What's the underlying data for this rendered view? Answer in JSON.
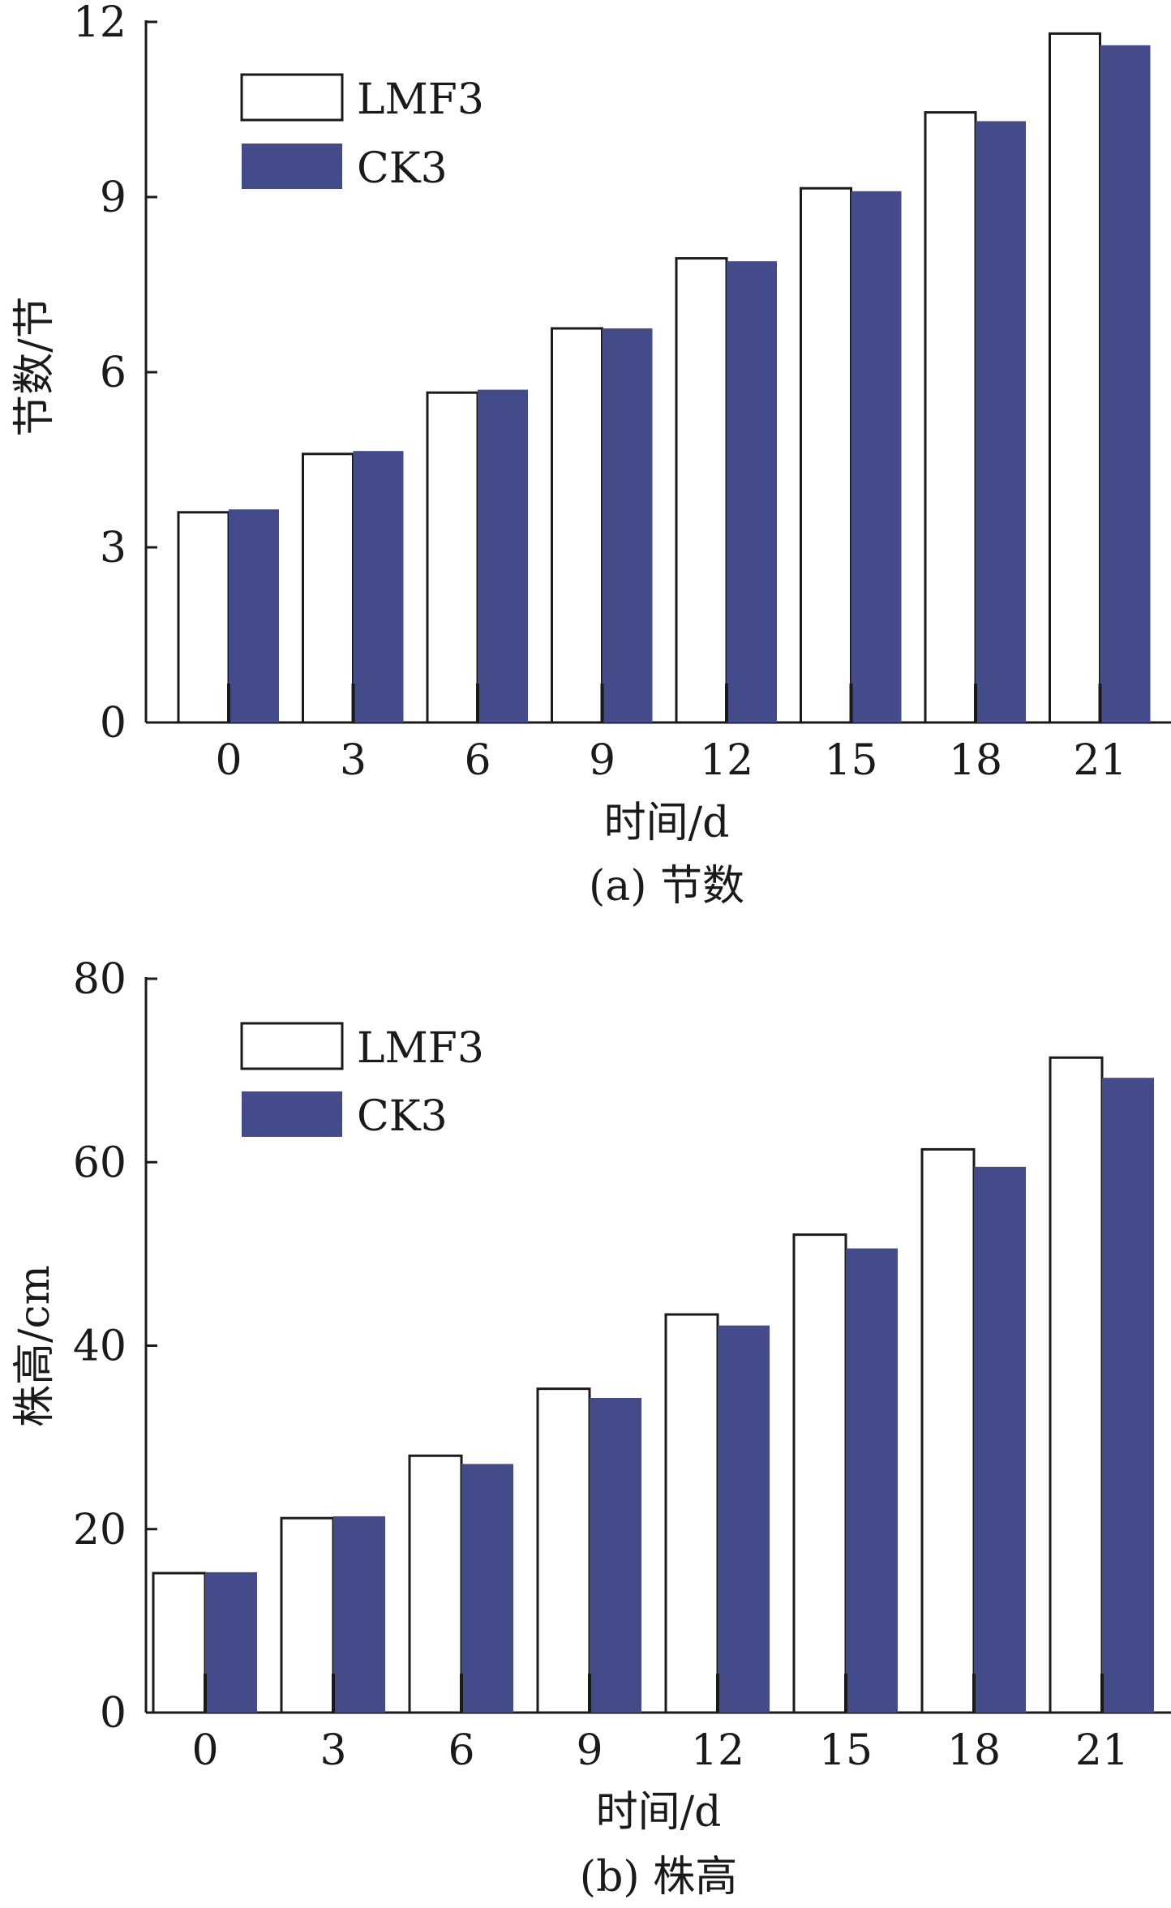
{
  "colors": {
    "series_lmf3_fill": "#ffffff",
    "series_ck3_fill": "#434b8b",
    "axis": "#1a1a1a",
    "text": "#1a1a1a"
  },
  "chart_data": [
    {
      "type": "bar",
      "caption": "(a) 节数",
      "xlabel": "时间/d",
      "ylabel": "节数/节",
      "categories": [
        "0",
        "3",
        "6",
        "9",
        "12",
        "15",
        "18",
        "21"
      ],
      "ylim": [
        0,
        12
      ],
      "yticks": [
        "0",
        "3",
        "6",
        "9",
        "12"
      ],
      "series": [
        {
          "name": "LMF3",
          "values": [
            3.6,
            4.6,
            5.65,
            6.75,
            7.95,
            9.15,
            10.45,
            11.8
          ]
        },
        {
          "name": "CK3",
          "values": [
            3.65,
            4.65,
            5.7,
            6.75,
            7.9,
            9.1,
            10.3,
            11.6
          ]
        }
      ],
      "legend": "top-left",
      "grid": false
    },
    {
      "type": "bar",
      "caption": "(b) 株高",
      "xlabel": "时间/d",
      "ylabel": "株高/cm",
      "categories": [
        "0",
        "3",
        "6",
        "9",
        "12",
        "15",
        "18",
        "21"
      ],
      "ylim": [
        0,
        80
      ],
      "yticks": [
        "0",
        "20",
        "40",
        "60",
        "80"
      ],
      "series": [
        {
          "name": "LMF3",
          "values": [
            15.2,
            21.2,
            28.0,
            35.3,
            43.4,
            52.1,
            61.4,
            71.4
          ]
        },
        {
          "name": "CK3",
          "values": [
            15.3,
            21.4,
            27.1,
            34.3,
            42.2,
            50.6,
            59.5,
            69.2
          ]
        }
      ],
      "legend": "top-left",
      "grid": false
    }
  ]
}
